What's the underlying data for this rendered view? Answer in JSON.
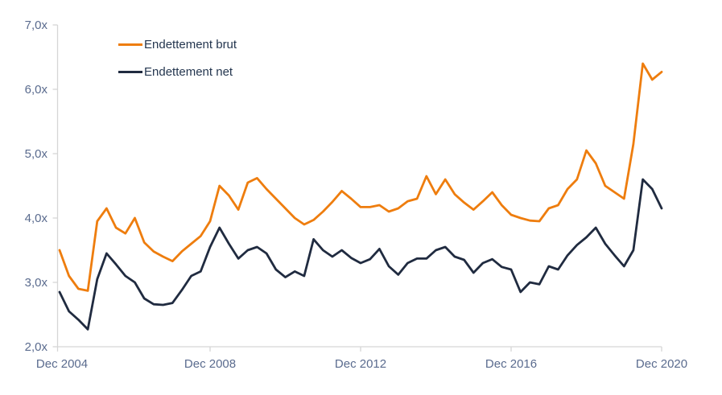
{
  "page": {
    "background": "#ffffff"
  },
  "chart_data": {
    "type": "line",
    "title": "",
    "xlabel": "",
    "ylabel": "",
    "frequency": "quarterly",
    "x_start": "Dec 2004",
    "x_end": "Dec 2020",
    "ylim": [
      2.0,
      7.0
    ],
    "grid": false,
    "legend_position": "top-left-inside",
    "axis_color": "#d6d6d6",
    "tick_label_color": "#5a6b8e",
    "legend_text_color": "#24364f",
    "y_tick_labels": [
      "7,0x",
      "6,0x",
      "5,0x",
      "4,0x",
      "3,0x",
      "2,0x"
    ],
    "y_tick_values": [
      7,
      6,
      5,
      4,
      3,
      2
    ],
    "x_tick_labels": [
      "Dec 2004",
      "Dec 2008",
      "Dec 2012",
      "Dec 2016",
      "Dec 2020"
    ],
    "x_tick_indices": [
      0,
      16,
      32,
      48,
      64
    ],
    "series": [
      {
        "name": "Endettement brut",
        "color": "#ee7d0e",
        "values": [
          3.5,
          3.1,
          2.9,
          2.87,
          3.95,
          4.15,
          3.85,
          3.76,
          4.0,
          3.62,
          3.48,
          3.4,
          3.33,
          3.48,
          3.6,
          3.72,
          3.95,
          4.5,
          4.35,
          4.13,
          4.55,
          4.62,
          4.45,
          4.3,
          4.15,
          4.0,
          3.9,
          3.97,
          4.1,
          4.25,
          4.42,
          4.3,
          4.17,
          4.17,
          4.2,
          4.1,
          4.15,
          4.26,
          4.3,
          4.65,
          4.37,
          4.6,
          4.37,
          4.24,
          4.13,
          4.26,
          4.4,
          4.2,
          4.05,
          4.0,
          3.96,
          3.95,
          4.15,
          4.2,
          4.45,
          4.6,
          5.05,
          4.85,
          4.5,
          4.4,
          4.3,
          5.15,
          6.4,
          6.15,
          6.27
        ]
      },
      {
        "name": "Endettement net",
        "color": "#202b40",
        "values": [
          2.85,
          2.55,
          2.42,
          2.27,
          3.05,
          3.45,
          3.28,
          3.1,
          3.0,
          2.75,
          2.66,
          2.65,
          2.68,
          2.88,
          3.1,
          3.17,
          3.55,
          3.85,
          3.6,
          3.37,
          3.5,
          3.55,
          3.45,
          3.2,
          3.08,
          3.17,
          3.1,
          3.67,
          3.5,
          3.4,
          3.5,
          3.38,
          3.3,
          3.36,
          3.52,
          3.25,
          3.12,
          3.3,
          3.37,
          3.37,
          3.5,
          3.55,
          3.4,
          3.35,
          3.15,
          3.3,
          3.36,
          3.24,
          3.2,
          2.85,
          3.0,
          2.97,
          3.25,
          3.2,
          3.42,
          3.58,
          3.7,
          3.85,
          3.6,
          3.42,
          3.25,
          3.5,
          4.6,
          4.45,
          4.15
        ]
      }
    ]
  }
}
